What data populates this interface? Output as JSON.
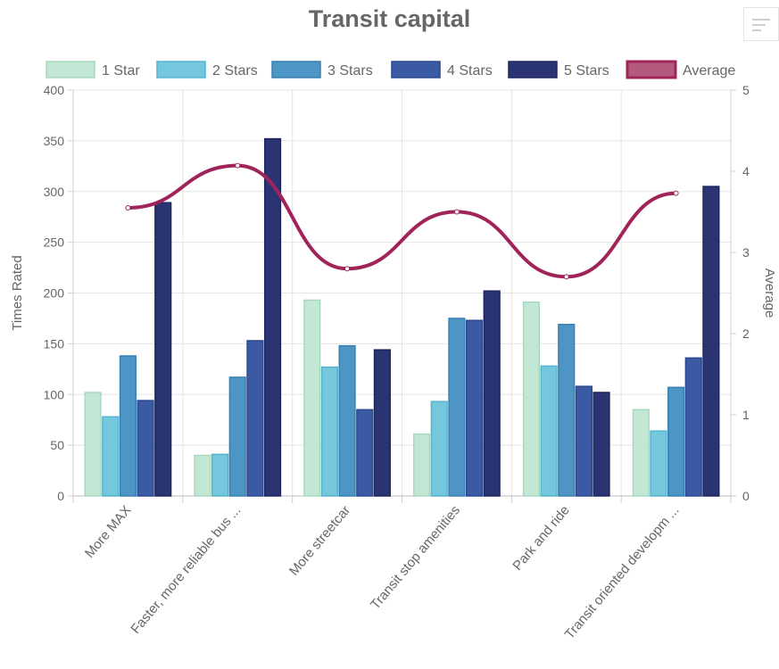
{
  "chart_data": {
    "type": "bar",
    "title": "Transit capital",
    "categories": [
      "More MAX",
      "Faster, more reliable bus ...",
      "More streetcar",
      "Transit stop amenities",
      "Park and ride",
      "Transit oriented developm ..."
    ],
    "series": [
      {
        "name": "1 Star",
        "type": "bar",
        "axis": "left",
        "color": "#c3e7d5",
        "border": "#a6d9c0",
        "values": [
          102,
          40,
          193,
          61,
          191,
          85
        ]
      },
      {
        "name": "2 Stars",
        "type": "bar",
        "axis": "left",
        "color": "#74c7dc",
        "border": "#55b4cf",
        "values": [
          78,
          41,
          127,
          93,
          128,
          64
        ]
      },
      {
        "name": "3 Stars",
        "type": "bar",
        "axis": "left",
        "color": "#4d95c4",
        "border": "#3a80b3",
        "values": [
          138,
          117,
          148,
          175,
          169,
          107
        ]
      },
      {
        "name": "4 Stars",
        "type": "bar",
        "axis": "left",
        "color": "#3a5aa3",
        "border": "#2d4a90",
        "values": [
          94,
          153,
          85,
          173,
          108,
          136
        ]
      },
      {
        "name": "5 Stars",
        "type": "bar",
        "axis": "left",
        "color": "#2a3472",
        "border": "#1e275d",
        "values": [
          289,
          352,
          144,
          202,
          102,
          305
        ]
      },
      {
        "name": "Average",
        "type": "line",
        "axis": "right",
        "color": "#a0245a",
        "values": [
          3.55,
          4.07,
          2.8,
          3.5,
          2.7,
          3.73
        ]
      }
    ],
    "ylabel": "Times Rated",
    "y2label": "Average",
    "ylim": [
      0,
      400
    ],
    "y2lim": [
      0,
      5
    ],
    "yticks": [
      0,
      50,
      100,
      150,
      200,
      250,
      300,
      350,
      400
    ],
    "y2ticks": [
      0,
      1,
      2,
      3,
      4,
      5
    ],
    "grid": true,
    "legend": "top"
  },
  "menu": {
    "icon": "menu-icon"
  }
}
